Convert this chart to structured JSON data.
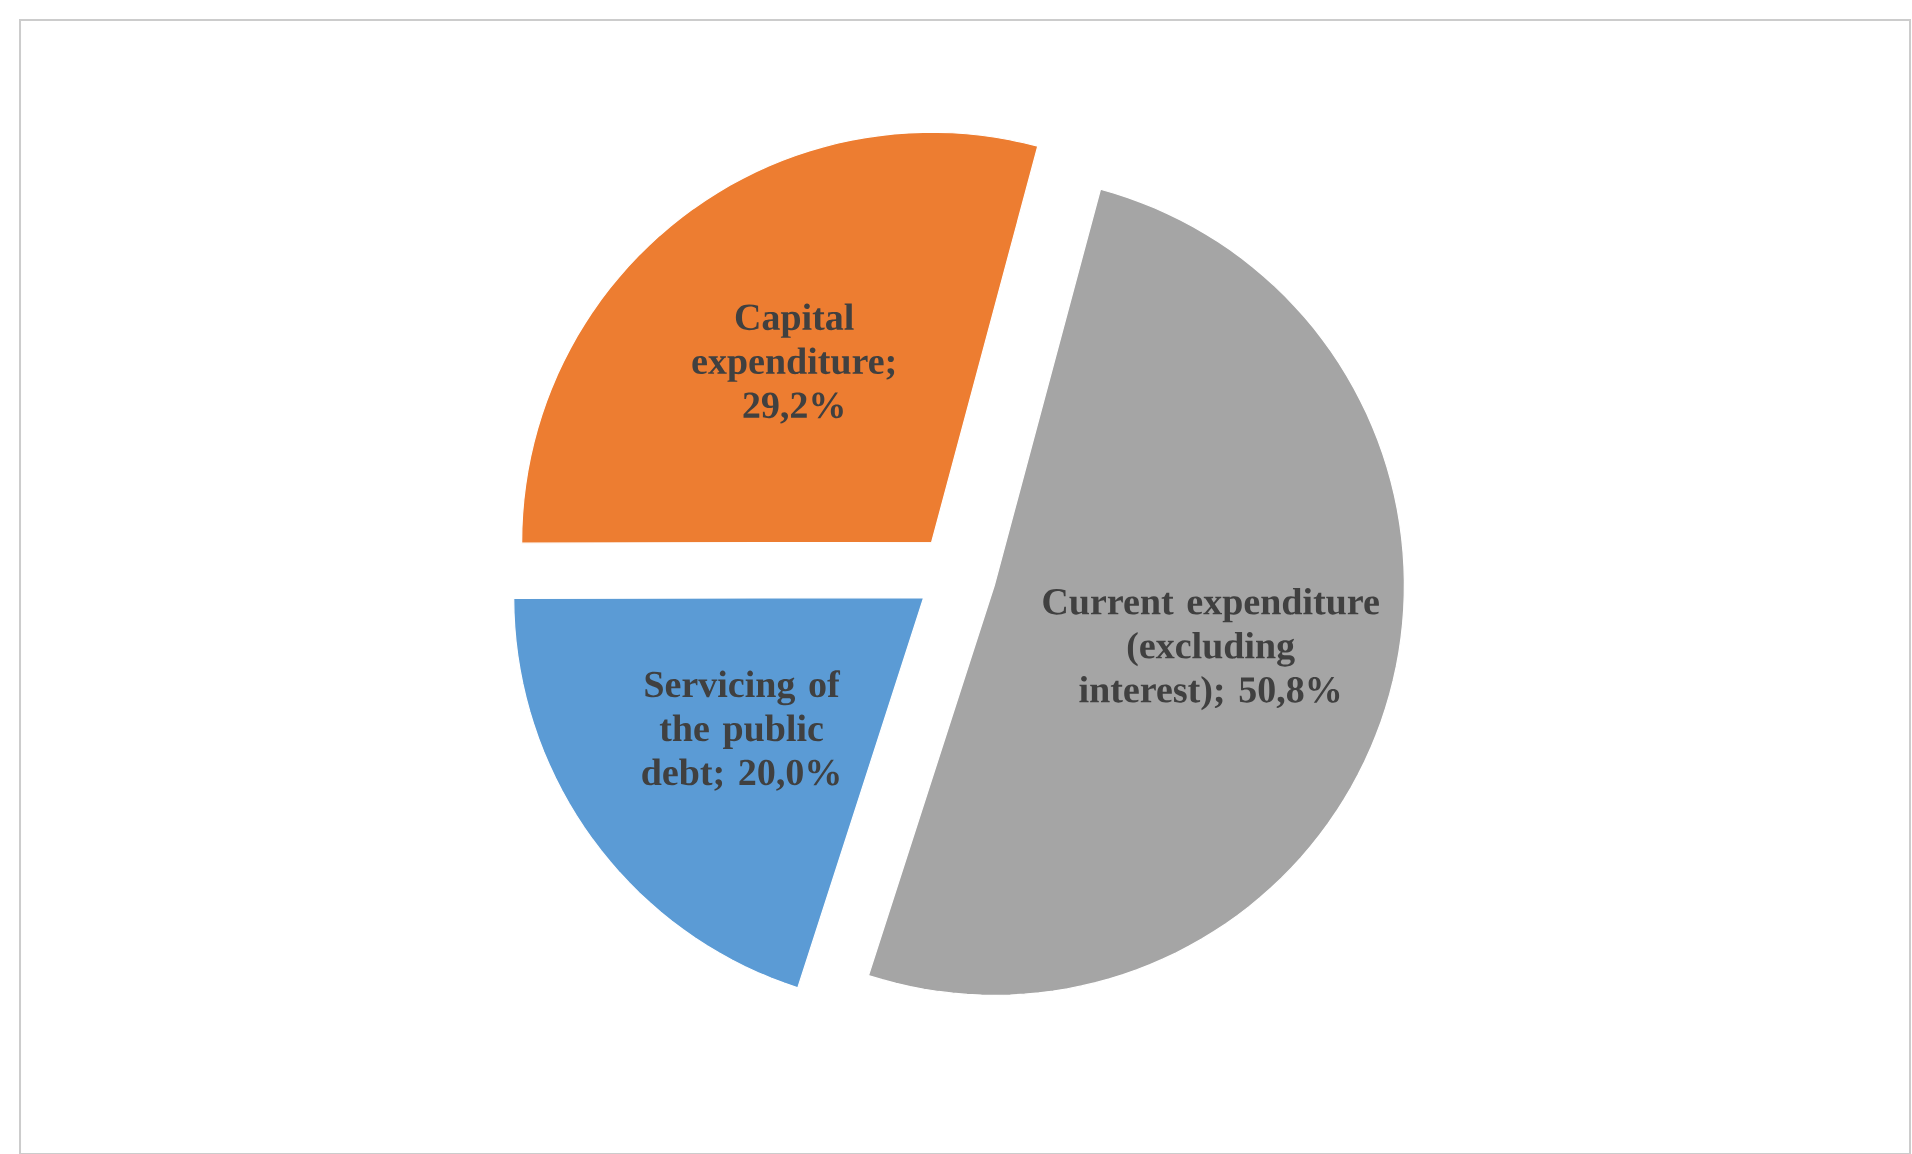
{
  "chart_data": {
    "type": "pie",
    "categories": [
      "Capital expenditure",
      "Servicing of the public debt",
      "Current expenditure (excluding interest)"
    ],
    "values": [
      29.2,
      20.0,
      50.8
    ],
    "value_labels": [
      "; 29,2%",
      "; 20,0%",
      "; 50,8%"
    ],
    "colors": [
      "#ed7d31",
      "#5b9bd5",
      "#a5a5a5"
    ]
  }
}
